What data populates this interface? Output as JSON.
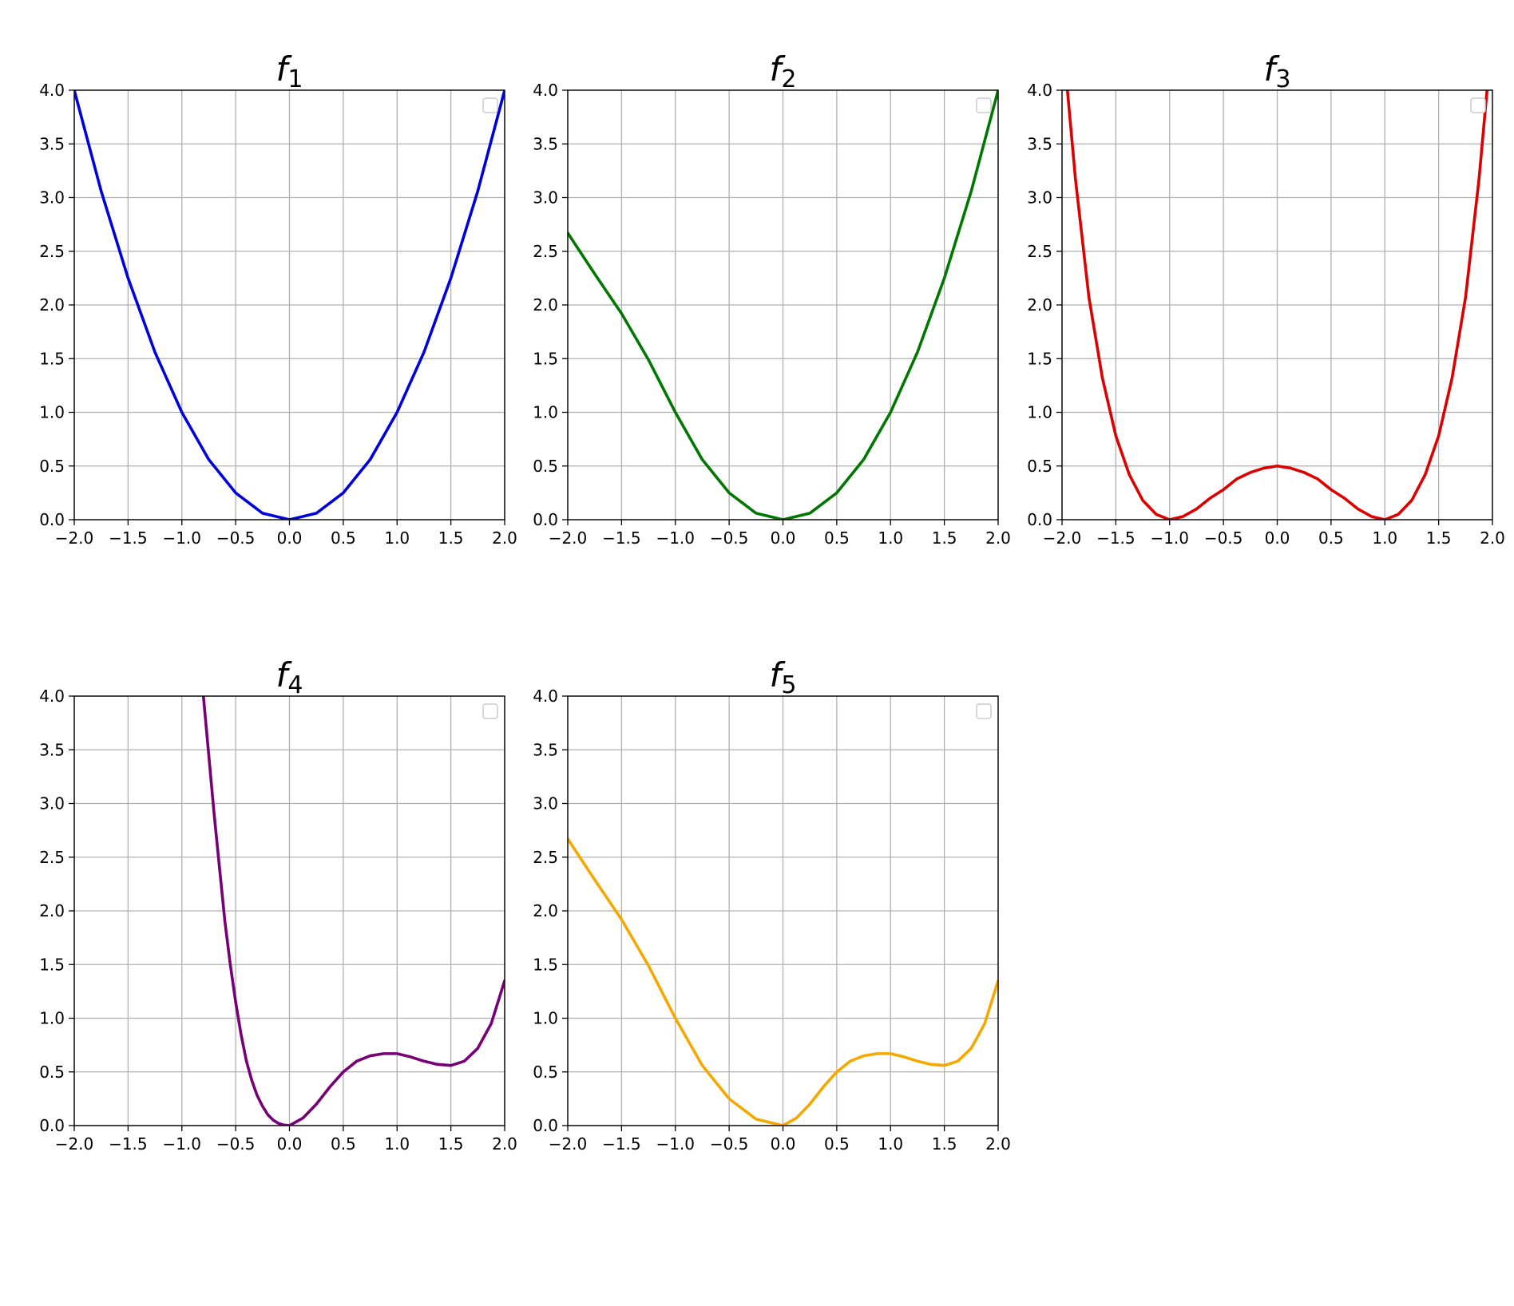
{
  "chart_data": [
    {
      "type": "line",
      "title": "f",
      "title_subscript": "1",
      "color": "#0000dd",
      "xlim": [
        -2.0,
        2.0
      ],
      "ylim": [
        0.0,
        4.0
      ],
      "xticks": [
        "−2.0",
        "−1.5",
        "−1.0",
        "−0.5",
        "0.0",
        "0.5",
        "1.0",
        "1.5",
        "2.0"
      ],
      "yticks": [
        "0.0",
        "0.5",
        "1.0",
        "1.5",
        "2.0",
        "2.5",
        "3.0",
        "3.5",
        "4.0"
      ],
      "grid": true,
      "legend": "top-right, empty",
      "x": [
        -2.0,
        -1.75,
        -1.5,
        -1.25,
        -1.0,
        -0.75,
        -0.5,
        -0.25,
        0.0,
        0.25,
        0.5,
        0.75,
        1.0,
        1.25,
        1.5,
        1.75,
        2.0
      ],
      "y": [
        4.0,
        3.06,
        2.25,
        1.56,
        1.0,
        0.56,
        0.25,
        0.06,
        0.0,
        0.06,
        0.25,
        0.56,
        1.0,
        1.56,
        2.25,
        3.06,
        4.0
      ]
    },
    {
      "type": "line",
      "title": "f",
      "title_subscript": "2",
      "color": "#007700",
      "xlim": [
        -2.0,
        2.0
      ],
      "ylim": [
        0.0,
        4.0
      ],
      "xticks": [
        "−2.0",
        "−1.5",
        "−1.0",
        "−0.5",
        "0.0",
        "0.5",
        "1.0",
        "1.5",
        "2.0"
      ],
      "yticks": [
        "0.0",
        "0.5",
        "1.0",
        "1.5",
        "2.0",
        "2.5",
        "3.0",
        "3.5",
        "4.0"
      ],
      "grid": true,
      "legend": "top-right, empty",
      "x": [
        -2.0,
        -1.75,
        -1.5,
        -1.25,
        -1.0,
        -0.75,
        -0.5,
        -0.25,
        0.0,
        0.25,
        0.5,
        0.75,
        1.0,
        1.25,
        1.5,
        1.75,
        2.0
      ],
      "y": [
        2.67,
        2.29,
        1.92,
        1.49,
        1.0,
        0.56,
        0.25,
        0.06,
        0.0,
        0.06,
        0.25,
        0.56,
        1.0,
        1.56,
        2.25,
        3.06,
        4.0
      ]
    },
    {
      "type": "line",
      "title": "f",
      "title_subscript": "3",
      "color": "#dd0000",
      "xlim": [
        -2.0,
        2.0
      ],
      "ylim": [
        0.0,
        4.0
      ],
      "xticks": [
        "−2.0",
        "−1.5",
        "−1.0",
        "−0.5",
        "0.0",
        "0.5",
        "1.0",
        "1.5",
        "2.0"
      ],
      "yticks": [
        "0.0",
        "0.5",
        "1.0",
        "1.5",
        "2.0",
        "2.5",
        "3.0",
        "3.5",
        "4.0"
      ],
      "grid": true,
      "legend": "top-right, empty",
      "x": [
        -1.95,
        -1.875,
        -1.75,
        -1.625,
        -1.5,
        -1.375,
        -1.25,
        -1.125,
        -1.0,
        -0.875,
        -0.75,
        -0.625,
        -0.5,
        -0.375,
        -0.25,
        -0.125,
        0.0,
        0.125,
        0.25,
        0.375,
        0.5,
        0.625,
        0.75,
        0.875,
        1.0,
        1.125,
        1.25,
        1.375,
        1.5,
        1.625,
        1.75,
        1.875,
        1.95
      ],
      "y": [
        4.0,
        3.17,
        2.07,
        1.32,
        0.78,
        0.42,
        0.18,
        0.05,
        0.0,
        0.03,
        0.1,
        0.2,
        0.28,
        0.38,
        0.44,
        0.48,
        0.5,
        0.48,
        0.44,
        0.38,
        0.28,
        0.2,
        0.1,
        0.03,
        0.0,
        0.05,
        0.18,
        0.42,
        0.78,
        1.32,
        2.07,
        3.17,
        4.0
      ]
    },
    {
      "type": "line",
      "title": "f",
      "title_subscript": "4",
      "color": "#770077",
      "xlim": [
        -2.0,
        2.0
      ],
      "ylim": [
        0.0,
        4.0
      ],
      "xticks": [
        "−2.0",
        "−1.5",
        "−1.0",
        "−0.5",
        "0.0",
        "0.5",
        "1.0",
        "1.5",
        "2.0"
      ],
      "yticks": [
        "0.0",
        "0.5",
        "1.0",
        "1.5",
        "2.0",
        "2.5",
        "3.0",
        "3.5",
        "4.0"
      ],
      "grid": true,
      "legend": "top-right, empty",
      "x": [
        -0.8,
        -0.75,
        -0.7,
        -0.65,
        -0.6,
        -0.55,
        -0.5,
        -0.45,
        -0.4,
        -0.35,
        -0.3,
        -0.25,
        -0.2,
        -0.15,
        -0.1,
        -0.05,
        0.0,
        0.125,
        0.25,
        0.375,
        0.5,
        0.625,
        0.75,
        0.875,
        1.0,
        1.125,
        1.25,
        1.375,
        1.5,
        1.625,
        1.75,
        1.875,
        2.0
      ],
      "y": [
        4.0,
        3.45,
        2.9,
        2.4,
        1.9,
        1.5,
        1.15,
        0.85,
        0.6,
        0.42,
        0.28,
        0.18,
        0.1,
        0.05,
        0.02,
        0.005,
        0.0,
        0.07,
        0.2,
        0.36,
        0.5,
        0.6,
        0.65,
        0.67,
        0.67,
        0.64,
        0.6,
        0.57,
        0.56,
        0.6,
        0.72,
        0.95,
        1.35
      ]
    },
    {
      "type": "line",
      "title": "f",
      "title_subscript": "5",
      "color": "#f5a800",
      "xlim": [
        -2.0,
        2.0
      ],
      "ylim": [
        0.0,
        4.0
      ],
      "xticks": [
        "−2.0",
        "−1.5",
        "−1.0",
        "−0.5",
        "0.0",
        "0.5",
        "1.0",
        "1.5",
        "2.0"
      ],
      "yticks": [
        "0.0",
        "0.5",
        "1.0",
        "1.5",
        "2.0",
        "2.5",
        "3.0",
        "3.5",
        "4.0"
      ],
      "grid": true,
      "legend": "top-right, empty",
      "x": [
        -2.0,
        -1.75,
        -1.5,
        -1.25,
        -1.0,
        -0.75,
        -0.5,
        -0.25,
        0.0,
        0.125,
        0.25,
        0.375,
        0.5,
        0.625,
        0.75,
        0.875,
        1.0,
        1.125,
        1.25,
        1.375,
        1.5,
        1.625,
        1.75,
        1.875,
        2.0
      ],
      "y": [
        2.67,
        2.29,
        1.92,
        1.49,
        1.0,
        0.56,
        0.25,
        0.06,
        0.0,
        0.07,
        0.2,
        0.36,
        0.5,
        0.6,
        0.65,
        0.67,
        0.67,
        0.64,
        0.6,
        0.57,
        0.56,
        0.6,
        0.72,
        0.95,
        1.35
      ]
    }
  ]
}
